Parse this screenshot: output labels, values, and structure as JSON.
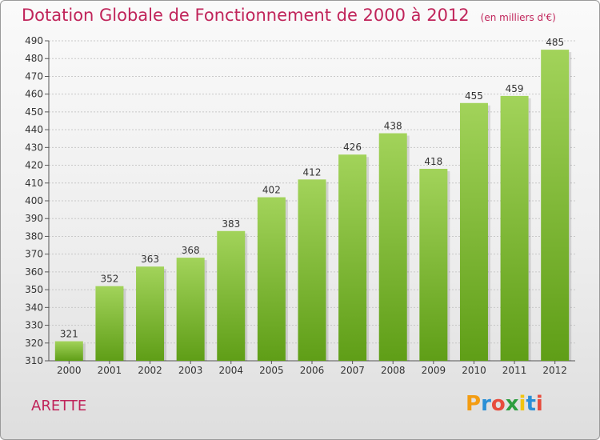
{
  "header": {
    "title": "Dotation Globale de Fonctionnement de 2000 à 2012",
    "unit": "(en milliers d'€)"
  },
  "footer": {
    "commune": "ARETTE",
    "logo": "Proxiti"
  },
  "colors": {
    "title": "#c0245a",
    "bar_top": "#a2d35a",
    "bar_bottom": "#5f9e17",
    "grid": "#c8c8c8"
  },
  "chart_data": {
    "type": "bar",
    "title": "Dotation Globale de Fonctionnement de 2000 à 2012",
    "subtitle": "(en milliers d'€)",
    "xlabel": "",
    "ylabel": "",
    "categories": [
      "2000",
      "2001",
      "2002",
      "2003",
      "2004",
      "2005",
      "2006",
      "2007",
      "2008",
      "2009",
      "2010",
      "2011",
      "2012"
    ],
    "values": [
      321,
      352,
      363,
      368,
      383,
      402,
      412,
      426,
      438,
      418,
      455,
      459,
      485
    ],
    "ylim": [
      310,
      490
    ],
    "yticks": [
      310,
      320,
      330,
      340,
      350,
      360,
      370,
      380,
      390,
      400,
      410,
      420,
      430,
      440,
      450,
      460,
      470,
      480,
      490
    ],
    "grid": true,
    "legend": "none"
  }
}
